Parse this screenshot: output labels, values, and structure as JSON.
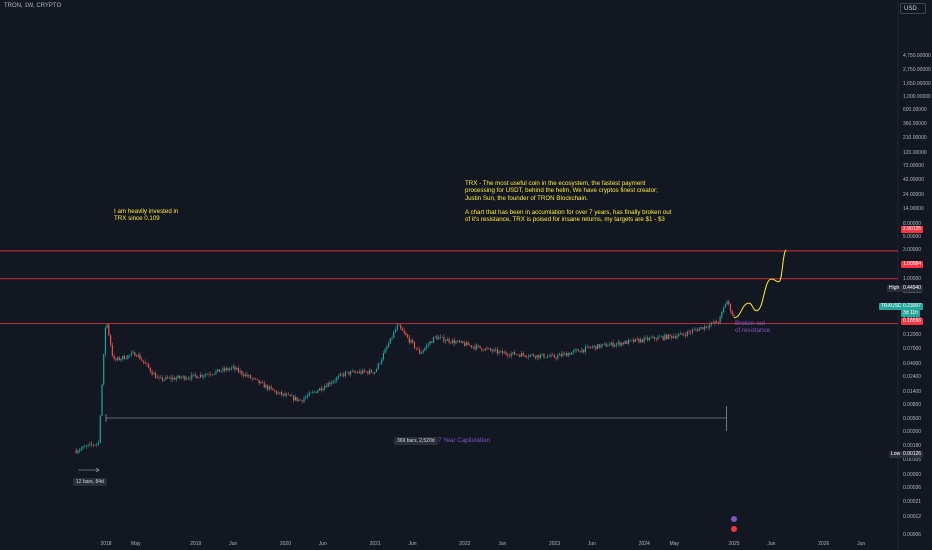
{
  "symbol": "TRON, 1W, CRYPTO",
  "currency": "USD",
  "colors": {
    "background": "#131722",
    "up": "#26a69a",
    "down": "#ef5350",
    "line": "#f23645",
    "arrow": "#ffeb3b",
    "measure": "#7e57c2"
  },
  "notes": {
    "left": "I am heavily invested in\nTRX since 0.109",
    "right": "TRX - The most useful coin in the ecosystem, the fastest payment\nprocessing for USDT, behind the helm, We have cryptos finest creator;\nJustin Sun, the founder of TRON Blockchain.\n\nA chart that has been in accumlation for over 7 years, has finally broken out\nof it's resistance, TRX is poised for insane returns, my targets are $1 - $3",
    "broken_out": "Broken out\nof resistance",
    "capitulation": "7 Year Capitulation",
    "capitulation_badge": "369 bars, 2,520d",
    "small_badge": "12 bars, 84d"
  },
  "price_tags": {
    "high_label": "High",
    "high_value": "0.44940",
    "current_symbol": "TRXUSD",
    "current_value": "0.23007",
    "current_sub": "3d 11h",
    "low_label": "Low",
    "low_value": "0.00126",
    "line_top": "2.90125",
    "line_mid": "1.00984",
    "line_bottom": "0.18556"
  },
  "chart_data": {
    "type": "candlestick",
    "scale": "log",
    "y_axis_ticks": [
      "4,750.00000",
      "2,750.00000",
      "1,650.00000",
      "1,000.00000",
      "600.00000",
      "360.00000",
      "210.00000",
      "120.00000",
      "72.00000",
      "42.00000",
      "24.00000",
      "14.00000",
      "8.00000",
      "5.00000",
      "3.00000",
      "1.80000",
      "1.00000",
      "0.60000",
      "0.36000",
      "0.21000",
      "0.12000",
      "0.07000",
      "0.04000",
      "0.02400",
      "0.01400",
      "0.00850",
      "0.00500",
      "0.00300",
      "0.00180",
      "0.00105",
      "0.00060",
      "0.00036",
      "0.00021",
      "0.00012",
      "0.00006"
    ],
    "x_axis_ticks": [
      "2018",
      "May",
      "2019",
      "Jun",
      "2020",
      "Jun",
      "2021",
      "Jun",
      "2022",
      "Jun",
      "2023",
      "Jun",
      "2024",
      "May",
      "2025",
      "Jun",
      "2026",
      "Jun"
    ],
    "horizontal_lines": [
      2.90125,
      1.00984,
      0.18556
    ],
    "key_prices": [
      {
        "date": "2017-09",
        "price": 0.0015
      },
      {
        "date": "2017-12",
        "price": 0.002
      },
      {
        "date": "2018-01",
        "price": 0.23
      },
      {
        "date": "2018-02",
        "price": 0.045
      },
      {
        "date": "2018-05",
        "price": 0.06
      },
      {
        "date": "2018-08",
        "price": 0.022
      },
      {
        "date": "2019-01",
        "price": 0.025
      },
      {
        "date": "2019-06",
        "price": 0.034
      },
      {
        "date": "2019-12",
        "price": 0.013
      },
      {
        "date": "2020-03",
        "price": 0.01
      },
      {
        "date": "2020-09",
        "price": 0.028
      },
      {
        "date": "2021-01",
        "price": 0.03
      },
      {
        "date": "2021-04",
        "price": 0.17
      },
      {
        "date": "2021-07",
        "price": 0.06
      },
      {
        "date": "2021-09",
        "price": 0.11
      },
      {
        "date": "2022-06",
        "price": 0.06
      },
      {
        "date": "2023-01",
        "price": 0.052
      },
      {
        "date": "2023-06",
        "price": 0.075
      },
      {
        "date": "2024-01",
        "price": 0.1
      },
      {
        "date": "2024-06",
        "price": 0.12
      },
      {
        "date": "2024-11",
        "price": 0.2
      },
      {
        "date": "2024-12",
        "price": 0.4494
      },
      {
        "date": "2025-01",
        "price": 0.23007
      }
    ],
    "projection": [
      {
        "date": "2025-01",
        "price": 0.23
      },
      {
        "date": "2025-03",
        "price": 0.4
      },
      {
        "date": "2025-04",
        "price": 0.3
      },
      {
        "date": "2025-06",
        "price": 1.0
      },
      {
        "date": "2025-07",
        "price": 0.9
      },
      {
        "date": "2025-08",
        "price": 3.0
      }
    ]
  }
}
